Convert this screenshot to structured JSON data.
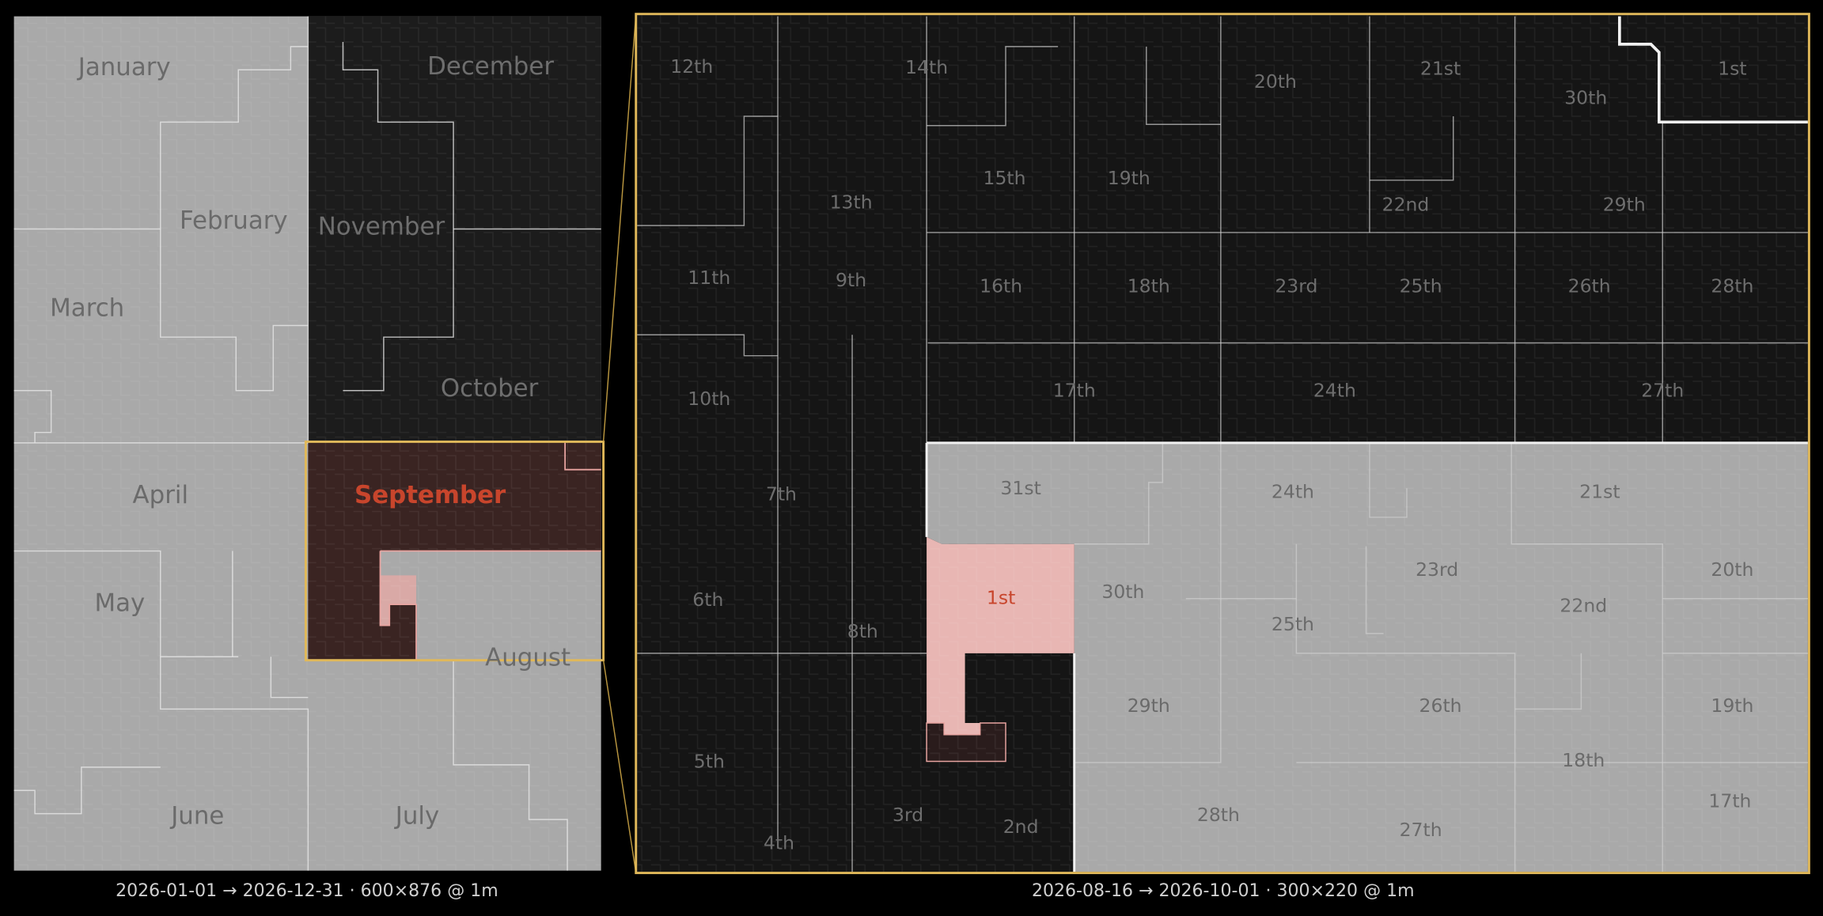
{
  "overview": {
    "months": [
      "January",
      "December",
      "February",
      "November",
      "March",
      "October",
      "April",
      "September",
      "May",
      "August",
      "June",
      "July"
    ],
    "caption": "2026-01-01 → 2026-12-31 · 600×876 @ 1m"
  },
  "detail": {
    "days": [
      "12th",
      "14th",
      "20th",
      "21st",
      "30th",
      "1st",
      "13th",
      "15th",
      "19th",
      "22nd",
      "29th",
      "11th",
      "9th",
      "16th",
      "18th",
      "23rd",
      "25th",
      "26th",
      "28th",
      "10th",
      "17th",
      "24th",
      "27th",
      "7th",
      "31st",
      "24th",
      "21st",
      "6th",
      "1st",
      "30th",
      "23rd",
      "20th",
      "8th",
      "25th",
      "22nd",
      "29th",
      "26th",
      "19th",
      "5th",
      "18th",
      "3rd",
      "2nd",
      "4th",
      "28th",
      "27th",
      "17th"
    ],
    "caption": "2026-08-16 → 2026-10-01 · 300×220 @ 1m"
  }
}
